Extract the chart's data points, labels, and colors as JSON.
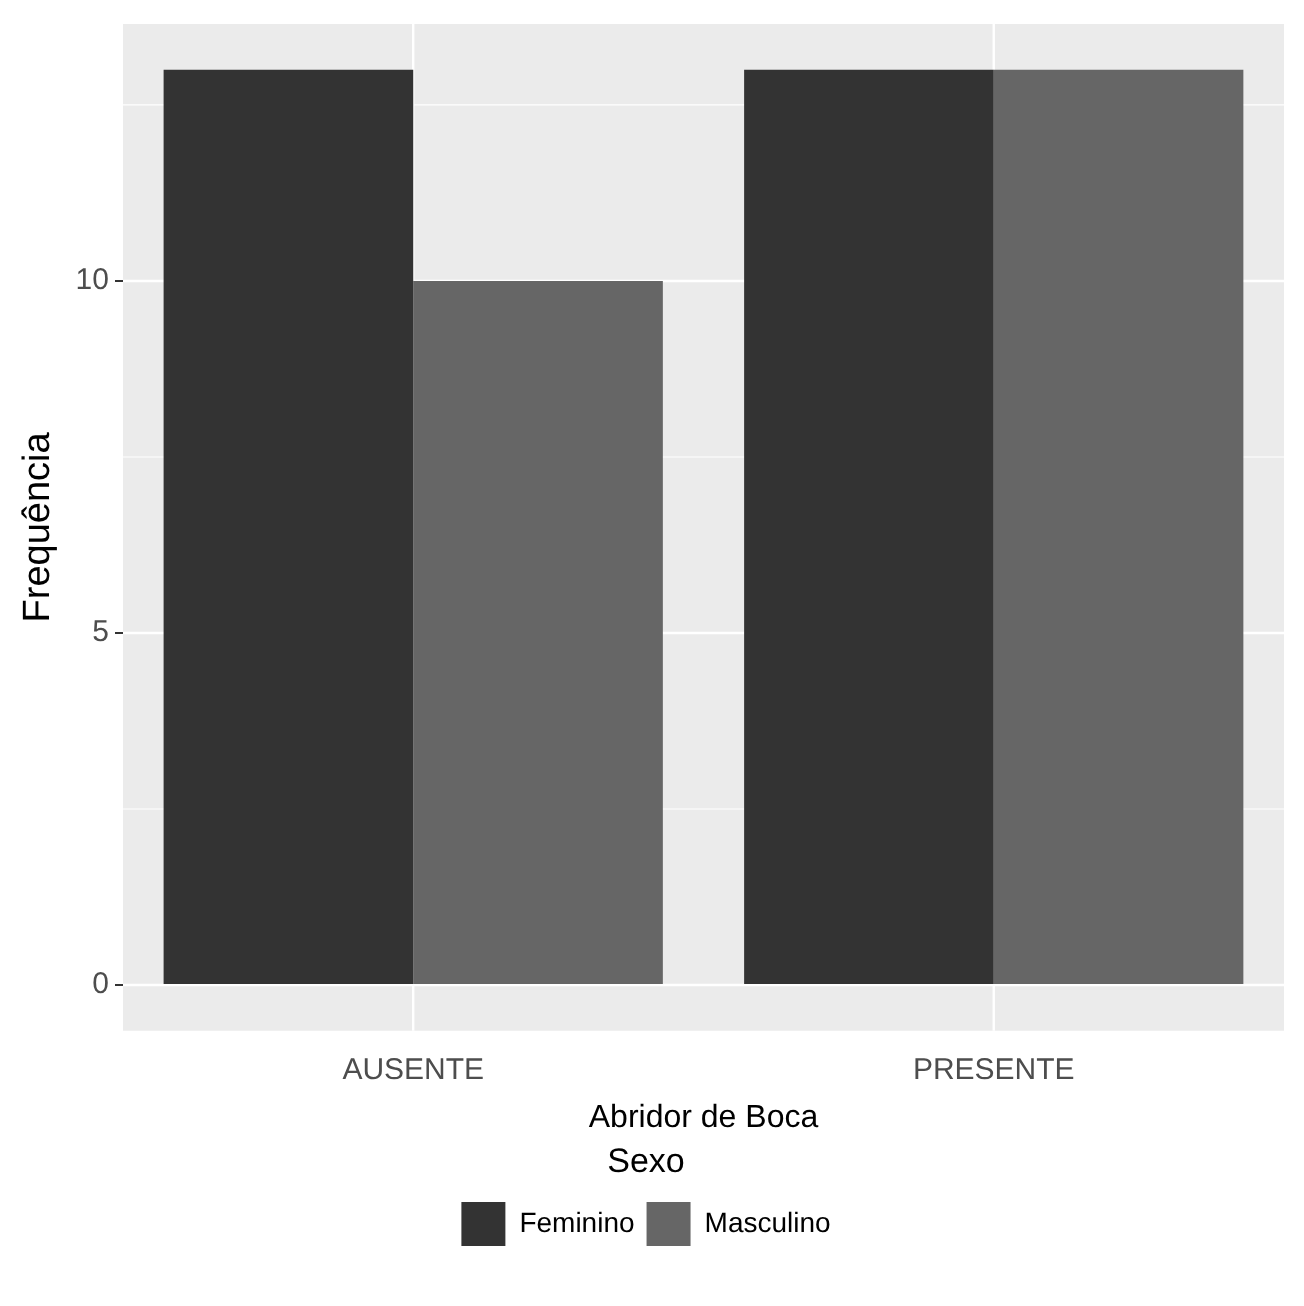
{
  "chart_data": {
    "type": "bar",
    "xlabel": "Abridor de Boca",
    "ylabel": "Frequência",
    "legend_title": "Sexo",
    "categories": [
      "AUSENTE",
      "PRESENTE"
    ],
    "series": [
      {
        "name": "Feminino",
        "color": "#333333",
        "values": [
          13,
          13
        ]
      },
      {
        "name": "Masculino",
        "color": "#666666",
        "values": [
          10,
          13
        ]
      }
    ],
    "ylim": [
      -0.65,
      13.65
    ],
    "yticks": [
      0,
      {
        "value": 2.5,
        "label": null
      },
      5,
      {
        "value": 7.5,
        "label": null
      },
      10,
      {
        "value": 12.5,
        "label": null
      }
    ],
    "grid": true,
    "legend": "bottom"
  }
}
